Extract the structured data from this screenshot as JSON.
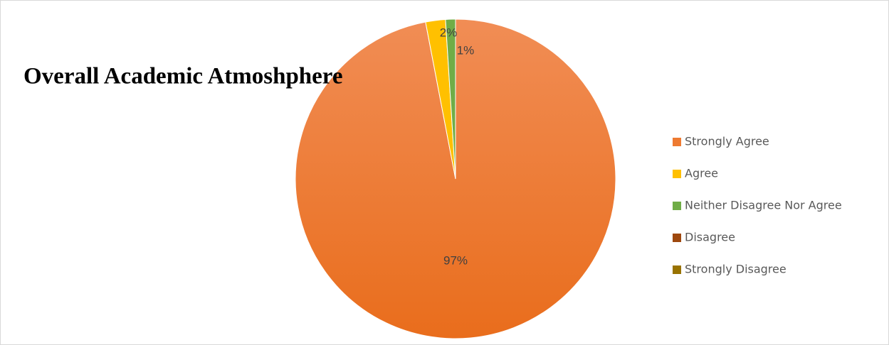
{
  "chart_data": {
    "type": "pie",
    "title": "Overall Academic Atmoshphere",
    "categories": [
      "Strongly Agree",
      "Agree",
      "Neither Disagree Nor Agree",
      "Disagree",
      "Strongly Disagree"
    ],
    "values": [
      97,
      2,
      1,
      0,
      0
    ],
    "value_labels": [
      "97%",
      "2%",
      "1%",
      null,
      null
    ],
    "colors": [
      "#ee7a31",
      "#ffc000",
      "#70ad47",
      "#9e480e",
      "#997300"
    ],
    "legend": "right"
  }
}
